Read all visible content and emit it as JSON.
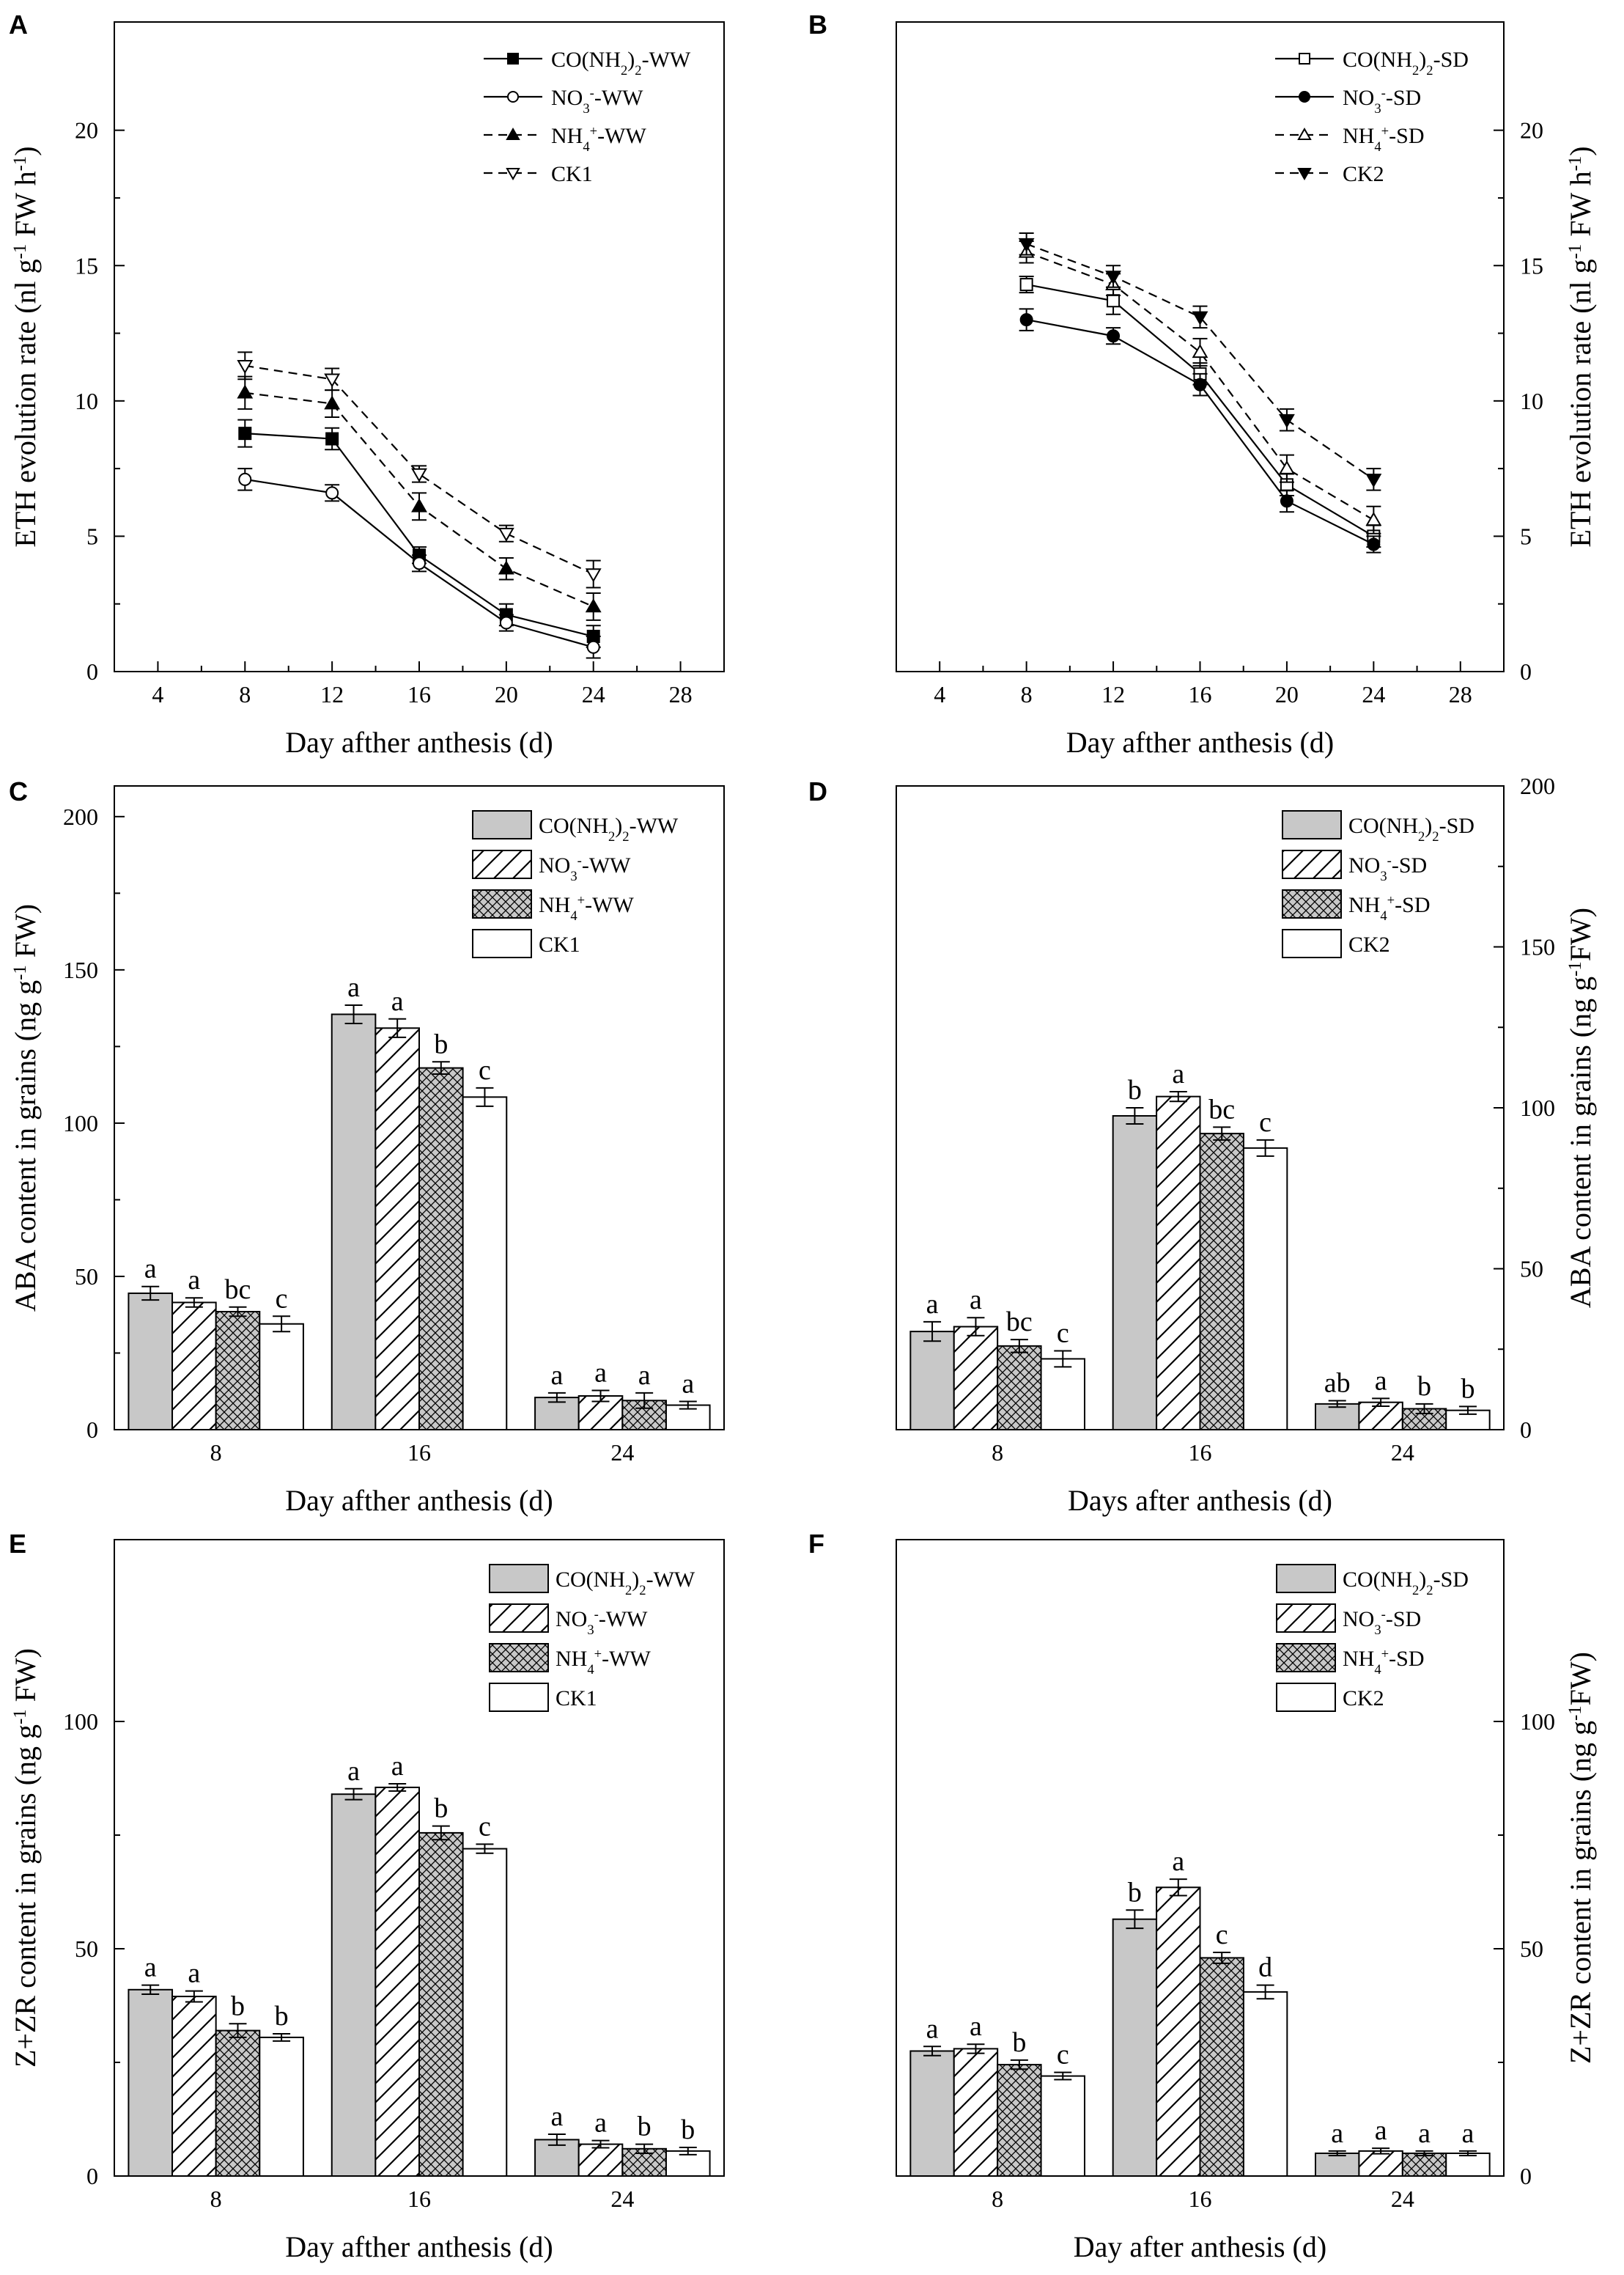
{
  "colors": {
    "gray": "#c8c8c8",
    "black": "#000000",
    "white": "#ffffff"
  },
  "chart_data": [
    {
      "panel": "A",
      "type": "line",
      "xlabel": "Day afther anthesis (d)",
      "ylabel": "ETH evolution rate (nl g⁻¹ FW h⁻¹)",
      "xlim": [
        2,
        30
      ],
      "ylim": [
        0,
        24
      ],
      "xticks": [
        4,
        8,
        12,
        16,
        20,
        24,
        28
      ],
      "yticks": [
        0,
        5,
        10,
        15,
        20
      ],
      "legend_position": "top-right",
      "x": [
        8,
        12,
        16,
        20,
        24
      ],
      "series": [
        {
          "name": "CO(NH₂)₂-WW",
          "values": [
            8.8,
            8.6,
            4.3,
            2.1,
            1.3
          ],
          "errors": [
            0.5,
            0.4,
            0.3,
            0.4,
            0.4
          ],
          "marker": "square-filled",
          "dashed": false
        },
        {
          "name": "NO₃⁻-WW",
          "values": [
            7.1,
            6.6,
            4.0,
            1.8,
            0.9
          ],
          "errors": [
            0.4,
            0.3,
            0.3,
            0.3,
            0.4
          ],
          "marker": "circle-open",
          "dashed": false
        },
        {
          "name": "NH₄⁺-WW",
          "values": [
            10.3,
            9.9,
            6.1,
            3.8,
            2.4
          ],
          "errors": [
            0.6,
            0.5,
            0.5,
            0.4,
            0.5
          ],
          "marker": "triangle-up-filled",
          "dashed": true
        },
        {
          "name": "CK1",
          "values": [
            11.3,
            10.8,
            7.3,
            5.1,
            3.6
          ],
          "errors": [
            0.5,
            0.4,
            0.3,
            0.3,
            0.5
          ],
          "marker": "triangle-down-open",
          "dashed": true
        }
      ]
    },
    {
      "panel": "B",
      "type": "line",
      "xlabel": "Day afther anthesis (d)",
      "ylabel": "ETH evolution rate (nl g⁻¹ FW h⁻¹)",
      "xlim": [
        2,
        30
      ],
      "ylim": [
        0,
        24
      ],
      "xticks": [
        4,
        8,
        12,
        16,
        20,
        24,
        28
      ],
      "yticks": [
        0,
        5,
        10,
        15,
        20
      ],
      "legend_position": "top-right",
      "x": [
        8,
        12,
        16,
        20,
        24
      ],
      "series": [
        {
          "name": "CO(NH₂)₂-SD",
          "values": [
            14.3,
            13.7,
            11.0,
            6.9,
            5.0
          ],
          "errors": [
            0.3,
            0.5,
            0.4,
            0.4,
            0.4
          ],
          "marker": "square-open",
          "dashed": false
        },
        {
          "name": "NO₃⁻-SD",
          "values": [
            13.0,
            12.4,
            10.6,
            6.3,
            4.7
          ],
          "errors": [
            0.4,
            0.3,
            0.4,
            0.4,
            0.3
          ],
          "marker": "circle-filled",
          "dashed": false
        },
        {
          "name": "NH₄⁺-SD",
          "values": [
            15.5,
            14.3,
            11.8,
            7.5,
            5.6
          ],
          "errors": [
            0.4,
            0.4,
            0.5,
            0.5,
            0.5
          ],
          "marker": "triangle-up-open",
          "dashed": true
        },
        {
          "name": "CK2",
          "values": [
            15.8,
            14.6,
            13.1,
            9.3,
            7.1
          ],
          "errors": [
            0.4,
            0.4,
            0.4,
            0.4,
            0.4
          ],
          "marker": "triangle-down-filled",
          "dashed": true
        }
      ]
    },
    {
      "panel": "C",
      "type": "bar",
      "xlabel": "Day afther anthesis (d)",
      "ylabel": "ABA content in grains (ng g⁻¹ FW)",
      "ylim": [
        0,
        210
      ],
      "yticks": [
        0,
        50,
        100,
        150,
        200
      ],
      "categories": [
        "8",
        "16",
        "24"
      ],
      "legend_position": "top-right",
      "series": [
        {
          "name": "CO(NH₂)₂-WW",
          "fill": "gray",
          "values": [
            44.5,
            135.5,
            10.5
          ],
          "errors": [
            2.2,
            3.0,
            1.5
          ],
          "letters": [
            "a",
            "a",
            "a"
          ]
        },
        {
          "name": "NO₃⁻-WW",
          "fill": "diag",
          "values": [
            41.5,
            131.0,
            11.0
          ],
          "errors": [
            1.5,
            3.0,
            1.8
          ],
          "letters": [
            "a",
            "a",
            "a"
          ]
        },
        {
          "name": "NH₄⁺-WW",
          "fill": "cross",
          "values": [
            38.5,
            118.0,
            9.5
          ],
          "errors": [
            1.5,
            2.0,
            2.5
          ],
          "letters": [
            "bc",
            "b",
            "a"
          ]
        },
        {
          "name": "CK1",
          "fill": "white",
          "values": [
            34.5,
            108.5,
            8.0
          ],
          "errors": [
            2.5,
            3.0,
            1.2
          ],
          "letters": [
            "c",
            "c",
            "a"
          ]
        }
      ]
    },
    {
      "panel": "D",
      "type": "bar",
      "xlabel": "Days after anthesis (d)",
      "ylabel": "ABA content in grains (ng g⁻¹FW)",
      "ylim": [
        0,
        200
      ],
      "yticks": [
        0,
        50,
        100,
        150,
        200
      ],
      "categories": [
        "8",
        "16",
        "24"
      ],
      "legend_position": "top-right",
      "series": [
        {
          "name": "CO(NH₂)₂-SD",
          "fill": "gray",
          "values": [
            30.5,
            97.5,
            8.0
          ],
          "errors": [
            3.0,
            2.5,
            1.0
          ],
          "letters": [
            "a",
            "b",
            "ab"
          ]
        },
        {
          "name": "NO₃⁻-SD",
          "fill": "diag",
          "values": [
            32.0,
            103.5,
            8.5
          ],
          "errors": [
            2.8,
            1.5,
            1.2
          ],
          "letters": [
            "a",
            "a",
            "a"
          ]
        },
        {
          "name": "NH₄⁺-SD",
          "fill": "cross",
          "values": [
            26.0,
            92.0,
            6.5
          ],
          "errors": [
            2.0,
            2.0,
            1.5
          ],
          "letters": [
            "bc",
            "bc",
            "b"
          ]
        },
        {
          "name": "CK2",
          "fill": "white",
          "values": [
            22.0,
            87.5,
            6.0
          ],
          "errors": [
            2.5,
            2.5,
            1.2
          ],
          "letters": [
            "c",
            "c",
            "b"
          ]
        }
      ]
    },
    {
      "panel": "E",
      "type": "bar",
      "xlabel": "Day afther anthesis (d)",
      "ylabel": "Z+ZR content in grains (ng g⁻¹ FW)",
      "ylim": [
        0,
        140
      ],
      "yticks": [
        0,
        50,
        100
      ],
      "categories": [
        "8",
        "16",
        "24"
      ],
      "legend_position": "top-right",
      "series": [
        {
          "name": "CO(NH₂)₂-WW",
          "fill": "gray",
          "values": [
            41.0,
            84.0,
            8.0
          ],
          "errors": [
            1.0,
            1.2,
            1.2
          ],
          "letters": [
            "a",
            "a",
            "a"
          ]
        },
        {
          "name": "NO₃⁻-WW",
          "fill": "diag",
          "values": [
            39.5,
            85.5,
            7.0
          ],
          "errors": [
            1.2,
            0.8,
            0.8
          ],
          "letters": [
            "a",
            "a",
            "a"
          ]
        },
        {
          "name": "NH₄⁺-WW",
          "fill": "cross",
          "values": [
            32.0,
            75.5,
            6.0
          ],
          "errors": [
            1.5,
            1.5,
            1.0
          ],
          "letters": [
            "b",
            "b",
            "b"
          ]
        },
        {
          "name": "CK1",
          "fill": "white",
          "values": [
            30.5,
            72.0,
            5.5
          ],
          "errors": [
            0.8,
            1.0,
            0.8
          ],
          "letters": [
            "b",
            "c",
            "b"
          ]
        }
      ]
    },
    {
      "panel": "F",
      "type": "bar",
      "xlabel": "Day after anthesis (d)",
      "ylabel": "Z+ZR content in grains (ng g⁻¹FW)",
      "ylim": [
        0,
        140
      ],
      "yticks": [
        0,
        50,
        100
      ],
      "categories": [
        "8",
        "16",
        "24"
      ],
      "legend_position": "top-right",
      "series": [
        {
          "name": "CO(NH₂)₂-SD",
          "fill": "gray",
          "values": [
            27.5,
            56.5,
            5.0
          ],
          "errors": [
            1.0,
            2.0,
            0.5
          ],
          "letters": [
            "a",
            "b",
            "a"
          ]
        },
        {
          "name": "NO₃⁻-SD",
          "fill": "diag",
          "values": [
            28.0,
            63.5,
            5.5
          ],
          "errors": [
            1.0,
            1.8,
            0.6
          ],
          "letters": [
            "a",
            "a",
            "a"
          ]
        },
        {
          "name": "NH₄⁺-SD",
          "fill": "cross",
          "values": [
            24.5,
            48.0,
            5.0
          ],
          "errors": [
            1.0,
            1.2,
            0.5
          ],
          "letters": [
            "b",
            "c",
            "a"
          ]
        },
        {
          "name": "CK2",
          "fill": "white",
          "values": [
            22.0,
            40.5,
            5.0
          ],
          "errors": [
            0.8,
            1.5,
            0.5
          ],
          "letters": [
            "c",
            "d",
            "a"
          ]
        }
      ]
    }
  ]
}
